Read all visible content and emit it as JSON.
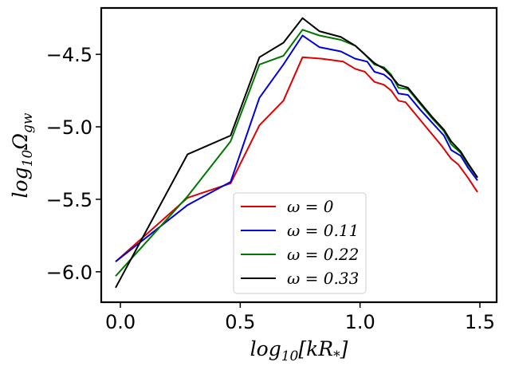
{
  "chart_data": {
    "type": "line",
    "title": "",
    "xlabel": "log10[kR*]",
    "ylabel": "log10 Ωgw",
    "xlim": [
      -0.08,
      1.57
    ],
    "ylim": [
      -6.21,
      -4.18
    ],
    "xticks": [
      0.0,
      0.5,
      1.0,
      1.5
    ],
    "xtick_labels": [
      "0.0",
      "0.5",
      "1.0",
      "1.5"
    ],
    "yticks": [
      -6.0,
      -5.5,
      -5.0,
      -4.5
    ],
    "ytick_labels": [
      "−6.0",
      "−5.5",
      "−5.0",
      "−4.5"
    ],
    "grid": false,
    "legend_position": "lower-center",
    "series": [
      {
        "name": "ω = 0",
        "color": "#e00000",
        "x": [
          -0.02,
          0.28,
          0.46,
          0.58,
          0.68,
          0.76,
          0.84,
          0.93,
          0.98,
          1.02,
          1.06,
          1.1,
          1.13,
          1.16,
          1.19,
          1.25,
          1.29,
          1.34,
          1.38,
          1.41,
          1.45,
          1.49
        ],
        "y": [
          -5.93,
          -5.49,
          -5.39,
          -4.99,
          -4.82,
          -4.52,
          -4.53,
          -4.55,
          -4.6,
          -4.62,
          -4.69,
          -4.71,
          -4.75,
          -4.82,
          -4.83,
          -4.95,
          -5.03,
          -5.13,
          -5.22,
          -5.26,
          -5.35,
          -5.45
        ]
      },
      {
        "name": "ω = 0.11",
        "color": "#0000dd",
        "x": [
          -0.02,
          0.28,
          0.46,
          0.58,
          0.68,
          0.76,
          0.83,
          0.92,
          0.98,
          1.03,
          1.06,
          1.1,
          1.13,
          1.16,
          1.2,
          1.25,
          1.3,
          1.35,
          1.38,
          1.42,
          1.45,
          1.49
        ],
        "y": [
          -5.93,
          -5.54,
          -5.38,
          -4.8,
          -4.57,
          -4.37,
          -4.45,
          -4.48,
          -4.53,
          -4.55,
          -4.62,
          -4.64,
          -4.68,
          -4.77,
          -4.78,
          -4.88,
          -4.97,
          -5.06,
          -5.16,
          -5.2,
          -5.28,
          -5.37
        ]
      },
      {
        "name": "ω = 0.22",
        "color": "#007700",
        "x": [
          -0.02,
          0.28,
          0.46,
          0.58,
          0.68,
          0.76,
          0.83,
          0.92,
          0.98,
          1.02,
          1.06,
          1.1,
          1.13,
          1.16,
          1.2,
          1.25,
          1.3,
          1.35,
          1.38,
          1.42,
          1.45,
          1.49
        ],
        "y": [
          -6.03,
          -5.48,
          -5.1,
          -4.57,
          -4.51,
          -4.33,
          -4.37,
          -4.4,
          -4.44,
          -4.5,
          -4.57,
          -4.59,
          -4.64,
          -4.73,
          -4.74,
          -4.84,
          -4.94,
          -5.03,
          -5.12,
          -5.18,
          -5.26,
          -5.35
        ]
      },
      {
        "name": "ω = 0.33",
        "color": "#000000",
        "x": [
          -0.02,
          0.28,
          0.46,
          0.58,
          0.68,
          0.76,
          0.83,
          0.92,
          0.98,
          1.02,
          1.06,
          1.1,
          1.13,
          1.16,
          1.2,
          1.25,
          1.3,
          1.35,
          1.38,
          1.42,
          1.45,
          1.49
        ],
        "y": [
          -6.11,
          -5.19,
          -5.06,
          -4.52,
          -4.42,
          -4.25,
          -4.34,
          -4.38,
          -4.44,
          -4.5,
          -4.56,
          -4.6,
          -4.65,
          -4.71,
          -4.73,
          -4.83,
          -4.93,
          -5.02,
          -5.1,
          -5.17,
          -5.25,
          -5.35
        ]
      }
    ]
  }
}
